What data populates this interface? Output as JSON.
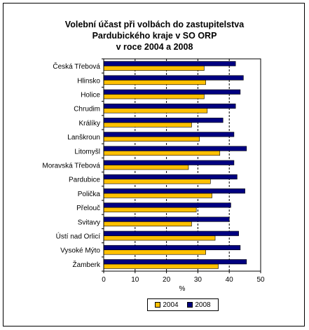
{
  "chart_data": {
    "type": "bar",
    "orientation": "horizontal",
    "title_lines": [
      "Volební účast při volbách do zastupitelstva",
      "Pardubického kraje v SO ORP",
      "v roce 2004 a 2008"
    ],
    "categories": [
      "Česká Třebová",
      "Hlinsko",
      "Holice",
      "Chrudim",
      "Králíky",
      "Lanškroun",
      "Litomyšl",
      "Moravská Třebová",
      "Pardubice",
      "Polička",
      "Přelouč",
      "Svitavy",
      "Ústí nad Orlicí",
      "Vysoké Mýto",
      "Žamberk"
    ],
    "series": [
      {
        "name": "2004",
        "color": "#FFC000",
        "values": [
          32.0,
          32.5,
          32.0,
          33.0,
          28.0,
          30.5,
          37.0,
          27.0,
          34.0,
          34.5,
          29.5,
          28.0,
          35.5,
          32.5,
          36.5
        ]
      },
      {
        "name": "2008",
        "color": "#000080",
        "values": [
          42.0,
          44.5,
          43.5,
          42.0,
          38.0,
          41.5,
          45.5,
          41.5,
          42.5,
          45.0,
          40.5,
          40.0,
          43.0,
          43.5,
          45.5
        ]
      }
    ],
    "xlabel": "%",
    "xlim": [
      0,
      50
    ],
    "xticks": [
      "0",
      "10",
      "20",
      "30",
      "40",
      "50"
    ],
    "grid": "vertical dashed lines at 10, 20, 30, 40",
    "legend_position": "bottom"
  }
}
